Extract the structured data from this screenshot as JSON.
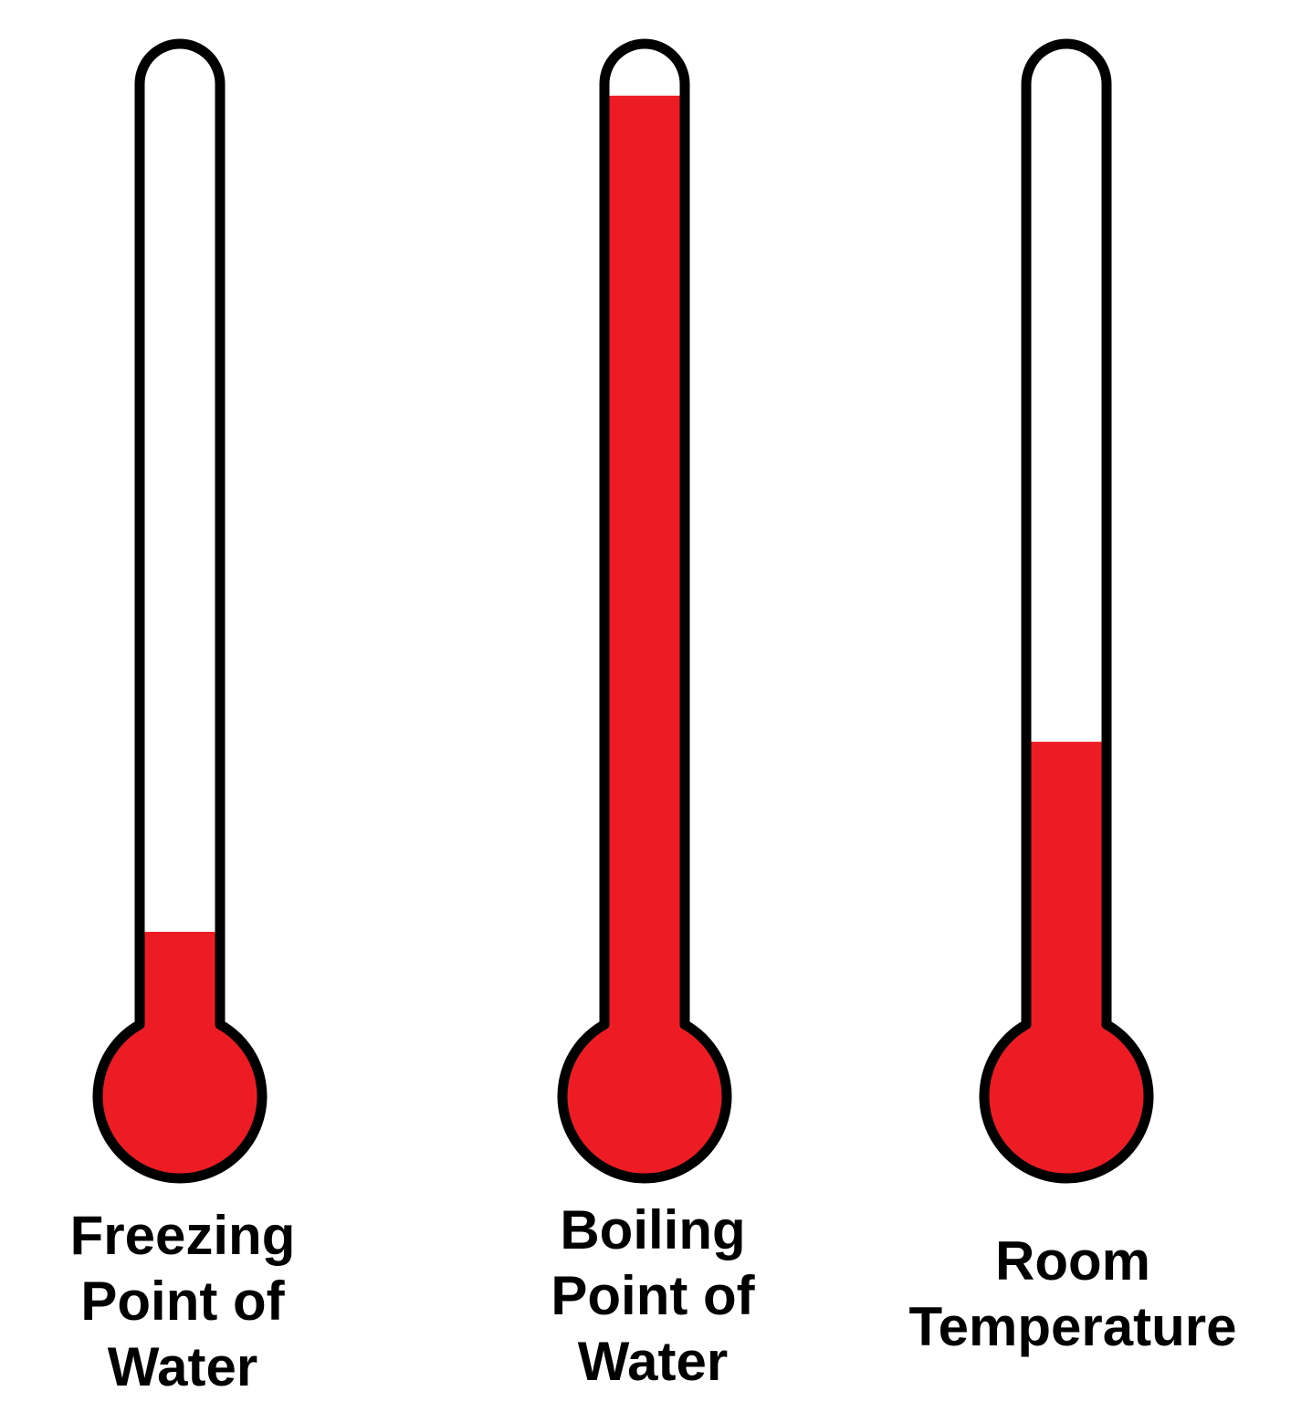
{
  "colors": {
    "mercury": "#ed1c24",
    "outline": "#000000",
    "tube_empty": "#ffffff"
  },
  "thermometers": [
    {
      "name": "freezing",
      "fill_fraction": 0.1,
      "label_lines": [
        "Freezing",
        "Point of",
        "Water"
      ]
    },
    {
      "name": "boiling",
      "fill_fraction": 0.98,
      "label_lines": [
        "Boiling",
        "Point of",
        "Water"
      ]
    },
    {
      "name": "room",
      "fill_fraction": 0.3,
      "label_lines": [
        "Room",
        "Temperature"
      ]
    }
  ]
}
